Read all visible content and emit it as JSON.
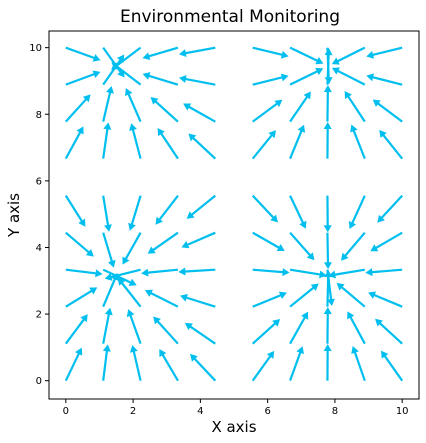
{
  "chart_data": {
    "type": "quiver",
    "title": "Environmental Monitoring",
    "xlabel": "X axis",
    "ylabel": "Y axis",
    "xlim": [
      -0.5,
      10.5
    ],
    "ylim": [
      -0.55,
      10.5
    ],
    "xticks": [
      0,
      2,
      4,
      6,
      8,
      10
    ],
    "yticks": [
      0,
      2,
      4,
      6,
      8,
      10
    ],
    "grid": false,
    "arrow_color": "#00bfef",
    "field": {
      "description_free": true,
      "grid_x": [
        0,
        1.111,
        2.222,
        3.333,
        4.444,
        5.556,
        6.667,
        7.778,
        8.889,
        10
      ],
      "grid_y": [
        0,
        1.111,
        2.222,
        3.333,
        4.444,
        5.556,
        6.667,
        7.778,
        8.889,
        10
      ],
      "sinks": [
        {
          "x": 1.5,
          "y": 9.45
        },
        {
          "x": 7.8,
          "y": 9.45
        },
        {
          "x": 1.5,
          "y": 3.15
        },
        {
          "x": 7.8,
          "y": 3.15
        }
      ],
      "arrow_length": 1.1
    }
  }
}
